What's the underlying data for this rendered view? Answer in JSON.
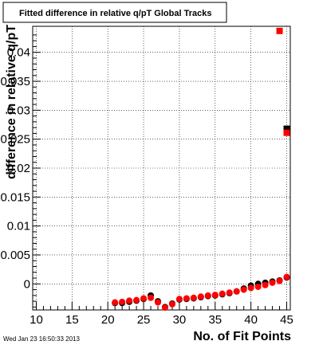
{
  "title": "Fitted difference in relative q/pT  Global Tracks",
  "timestamp": "Wed Jan 23 16:50:33 2013",
  "chart_data": {
    "type": "scatter",
    "title": "Fitted difference in relative q/pT  Global Tracks",
    "xlabel": "No. of Fit Points",
    "ylabel": "difference in relative q/pT",
    "xlim": [
      9.5,
      45.5
    ],
    "ylim": [
      -0.0045,
      0.0445
    ],
    "x_ticks": [
      10,
      15,
      20,
      25,
      30,
      35,
      40,
      45
    ],
    "y_ticks": [
      0,
      0.005,
      0.01,
      0.015,
      0.02,
      0.025,
      0.03,
      0.035,
      0.04
    ],
    "y_tick_labels": [
      "0",
      "0.005",
      "0.01",
      "0.015",
      "0.02",
      "0.025",
      "0.03",
      "0.035",
      "0.04"
    ],
    "grid": true,
    "series": [
      {
        "color": "#000000",
        "marker": "circle",
        "points": [
          [
            21,
            -0.0033
          ],
          [
            22,
            -0.0033
          ],
          [
            23,
            -0.0031
          ],
          [
            24,
            -0.0029
          ],
          [
            25,
            -0.0026
          ],
          [
            26,
            -0.002
          ],
          [
            27,
            -0.003
          ],
          [
            28,
            -0.004
          ],
          [
            29,
            -0.0034
          ],
          [
            30,
            -0.0027
          ],
          [
            31,
            -0.0026
          ],
          [
            32,
            -0.0025
          ],
          [
            33,
            -0.0023
          ],
          [
            34,
            -0.0021
          ],
          [
            35,
            -0.002
          ],
          [
            36,
            -0.0018
          ],
          [
            37,
            -0.0016
          ],
          [
            38,
            -0.0013
          ],
          [
            39,
            -0.0008
          ],
          [
            40,
            -0.0003
          ],
          [
            41,
            0.0
          ],
          [
            42,
            0.0002
          ],
          [
            43,
            0.0004
          ],
          [
            44,
            0.0006
          ],
          [
            45,
            0.0011
          ],
          [
            45,
            0.0268
          ]
        ]
      },
      {
        "color": "#ff0000",
        "marker": "circle",
        "points": [
          [
            21,
            -0.0032
          ],
          [
            22,
            -0.0031
          ],
          [
            23,
            -0.0029
          ],
          [
            24,
            -0.0028
          ],
          [
            25,
            -0.0025
          ],
          [
            26,
            -0.0024
          ],
          [
            27,
            -0.0032
          ],
          [
            28,
            -0.0041
          ],
          [
            29,
            -0.0035
          ],
          [
            30,
            -0.0026
          ],
          [
            31,
            -0.0025
          ],
          [
            32,
            -0.0024
          ],
          [
            33,
            -0.0022
          ],
          [
            34,
            -0.002
          ],
          [
            35,
            -0.0019
          ],
          [
            36,
            -0.0017
          ],
          [
            37,
            -0.0015
          ],
          [
            38,
            -0.0013
          ],
          [
            39,
            -0.001
          ],
          [
            40,
            -0.0007
          ],
          [
            41,
            -0.0005
          ],
          [
            42,
            -0.0002
          ],
          [
            43,
            0.0002
          ],
          [
            44,
            0.0005
          ],
          [
            45,
            0.0012
          ],
          [
            45,
            0.0261
          ],
          [
            44,
            0.0437
          ]
        ]
      }
    ]
  }
}
